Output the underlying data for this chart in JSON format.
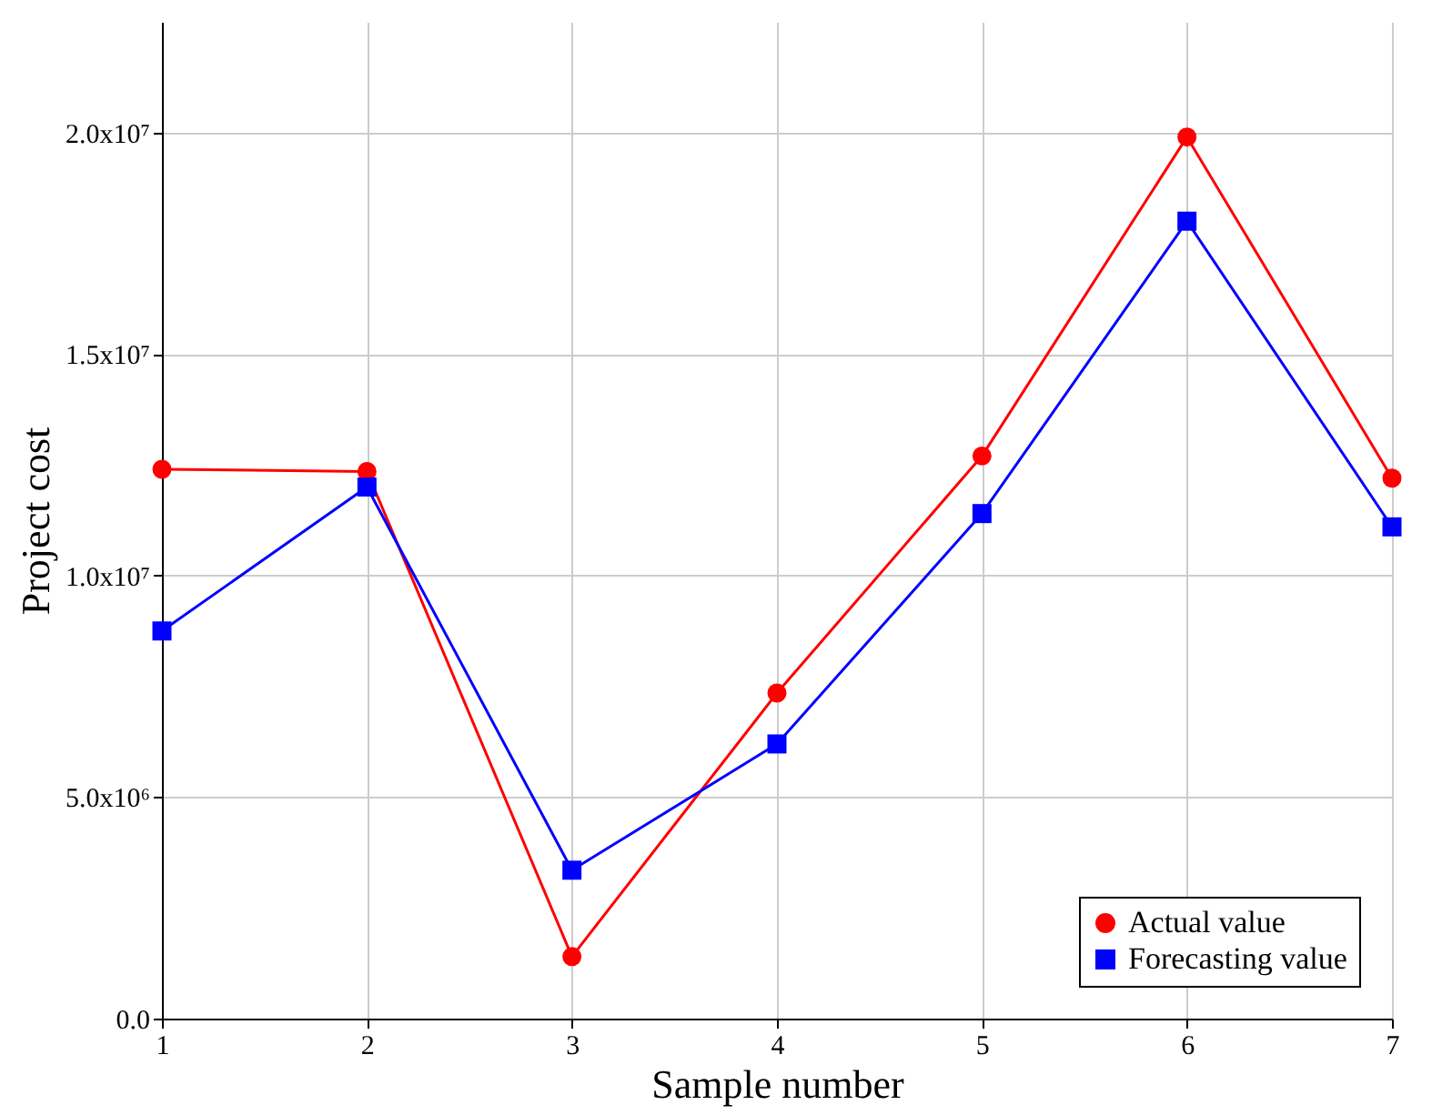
{
  "chart_data": {
    "type": "line",
    "xlabel": "Sample number",
    "ylabel": "Project cost",
    "x": [
      1,
      2,
      3,
      4,
      5,
      6,
      7
    ],
    "series": [
      {
        "name": "Actual value",
        "color": "#ff0000",
        "marker": "circle",
        "values": [
          12400000,
          12350000,
          1400000,
          7350000,
          12700000,
          19900000,
          12200000
        ]
      },
      {
        "name": "Forecasting value",
        "color": "#0000ff",
        "marker": "square",
        "values": [
          8750000,
          12000000,
          3350000,
          6200000,
          11400000,
          18000000,
          11100000
        ]
      }
    ],
    "xlim": [
      1,
      7
    ],
    "xticks": [
      1,
      2,
      3,
      4,
      5,
      6,
      7
    ],
    "ylim": [
      0,
      22500000
    ],
    "yticks": [
      {
        "value": 0,
        "label": "0.0"
      },
      {
        "value": 5000000,
        "label": "5.0x10⁶"
      },
      {
        "value": 10000000,
        "label": "1.0x10⁷"
      },
      {
        "value": 15000000,
        "label": "1.5x10⁷"
      },
      {
        "value": 20000000,
        "label": "2.0x10⁷"
      }
    ],
    "grid": true,
    "legend": "bottom right",
    "line_style": "solid"
  }
}
